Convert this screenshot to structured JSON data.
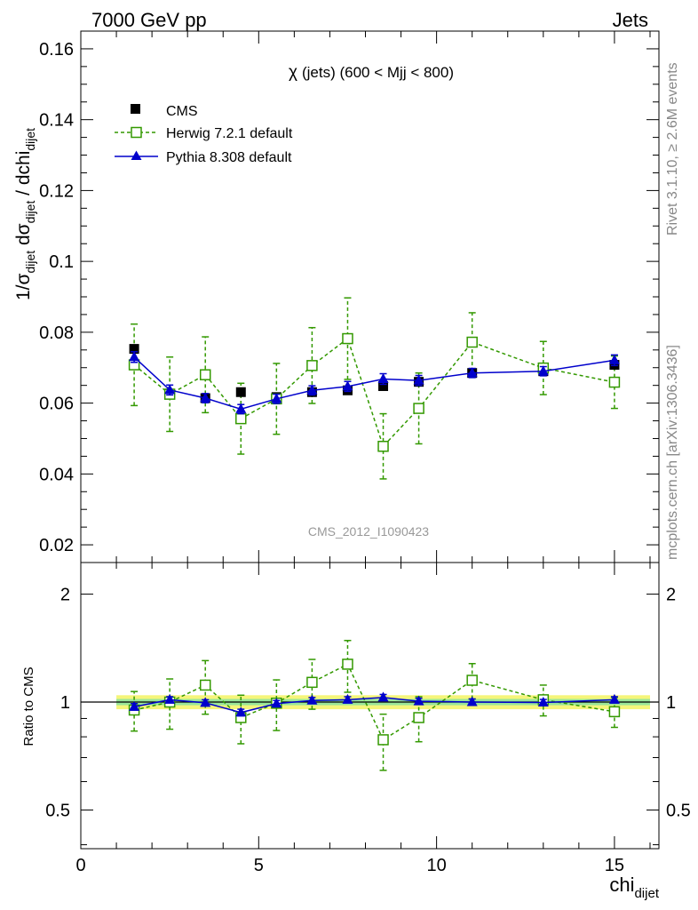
{
  "header": {
    "left": "7000 GeV pp",
    "right": "Jets"
  },
  "side_labels": {
    "rivet": "Rivet 3.1.10, ≥ 2.6M events",
    "mcplots": "mcplots.cern.ch [arXiv:1306.3436]"
  },
  "colors": {
    "cms": "#000000",
    "herwig": "#339900",
    "pythia": "#0000cc",
    "band_outer": "#f5f57a",
    "band_inner": "#99e699"
  },
  "chart_data": [
    {
      "type": "scatter",
      "panel": "main",
      "title_main": "χ",
      "title_rest": "(jets) (600 < Mjj <  800)",
      "watermark": "CMS_2012_I1090423",
      "ylabel_parts": {
        "p1": "1/σ",
        "s1": "dijet",
        "p2": " dσ",
        "s2": "dijet",
        "p3": " / dchi",
        "s3": "dijet"
      },
      "xlim": [
        0,
        16.25
      ],
      "ylim": [
        0.015,
        0.165
      ],
      "yticks": [
        0.02,
        0.04,
        0.06,
        0.08,
        0.1,
        0.12,
        0.14,
        0.16
      ],
      "ytick_labels": [
        "0.02",
        "0.04",
        "0.06",
        "0.08",
        "0.1",
        "0.12",
        "0.14",
        "0.16"
      ],
      "legend_position": "top-left",
      "series": [
        {
          "name": "CMS",
          "marker": "filled-square",
          "x": [
            1.5,
            2.5,
            3.5,
            4.5,
            5.5,
            6.5,
            7.5,
            8.5,
            9.5,
            11,
            13,
            15
          ],
          "y": [
            0.0753,
            0.0627,
            0.0614,
            0.0631,
            0.0617,
            0.0631,
            0.0636,
            0.0648,
            0.066,
            0.0685,
            0.069,
            0.0708
          ]
        },
        {
          "name": "Herwig 7.2.1 default",
          "marker": "open-square",
          "x": [
            1.5,
            2.5,
            3.5,
            4.5,
            5.5,
            6.5,
            7.5,
            8.5,
            9.5,
            11,
            13,
            15
          ],
          "y": [
            0.0708,
            0.0625,
            0.068,
            0.0556,
            0.0612,
            0.0706,
            0.0782,
            0.0478,
            0.0585,
            0.0772,
            0.0699,
            0.0659
          ],
          "yerr": [
            0.0115,
            0.0105,
            0.0107,
            0.01,
            0.01,
            0.0107,
            0.0115,
            0.0092,
            0.01,
            0.0083,
            0.0075,
            0.0074
          ]
        },
        {
          "name": "Pythia 8.308 default",
          "marker": "filled-triangle",
          "x": [
            1.5,
            2.5,
            3.5,
            4.5,
            5.5,
            6.5,
            7.5,
            8.5,
            9.5,
            11,
            13,
            15
          ],
          "y": [
            0.073,
            0.0637,
            0.0614,
            0.0583,
            0.0612,
            0.0636,
            0.0647,
            0.0668,
            0.0664,
            0.0685,
            0.069,
            0.0721
          ],
          "yerr": [
            0.0015,
            0.0014,
            0.0013,
            0.0013,
            0.0013,
            0.0013,
            0.0014,
            0.0015,
            0.0014,
            0.0013,
            0.0013,
            0.0015
          ]
        }
      ]
    },
    {
      "type": "scatter",
      "panel": "ratio",
      "xlabel_main": "chi",
      "xlabel_sub": "dijet",
      "ylabel": "Ratio to CMS",
      "xlim": [
        0,
        16.25
      ],
      "ylim": [
        0.39,
        2.45
      ],
      "log_y": true,
      "xticks": [
        0,
        5,
        10,
        15
      ],
      "xtick_labels": [
        "0",
        "5",
        "10",
        "15"
      ],
      "yticks": [
        0.5,
        1,
        2
      ],
      "ytick_labels": [
        "0.5",
        "1",
        "2"
      ],
      "band": {
        "x": [
          1,
          16
        ],
        "outer": [
          0.955,
          1.045
        ],
        "inner": [
          0.98,
          1.02
        ]
      },
      "series": [
        {
          "name": "Herwig 7.2.1 default",
          "x": [
            1.5,
            2.5,
            3.5,
            4.5,
            5.5,
            6.5,
            7.5,
            8.5,
            9.5,
            11,
            13,
            15
          ],
          "y": [
            0.95,
            1.0,
            1.115,
            0.905,
            0.993,
            1.135,
            1.275,
            0.785,
            0.905,
            1.15,
            1.015,
            0.94
          ],
          "yerr": [
            0.12,
            0.16,
            0.19,
            0.14,
            0.16,
            0.18,
            0.21,
            0.14,
            0.13,
            0.13,
            0.1,
            0.09
          ]
        },
        {
          "name": "Pythia 8.308 default",
          "x": [
            1.5,
            2.5,
            3.5,
            4.5,
            5.5,
            6.5,
            7.5,
            8.5,
            9.5,
            11,
            13,
            15
          ],
          "y": [
            0.97,
            1.015,
            0.995,
            0.935,
            0.99,
            1.01,
            1.015,
            1.03,
            1.005,
            1.0,
            0.997,
            1.015
          ],
          "yerr": [
            0.02,
            0.02,
            0.02,
            0.02,
            0.02,
            0.02,
            0.02,
            0.02,
            0.02,
            0.02,
            0.02,
            0.02
          ]
        }
      ]
    }
  ]
}
